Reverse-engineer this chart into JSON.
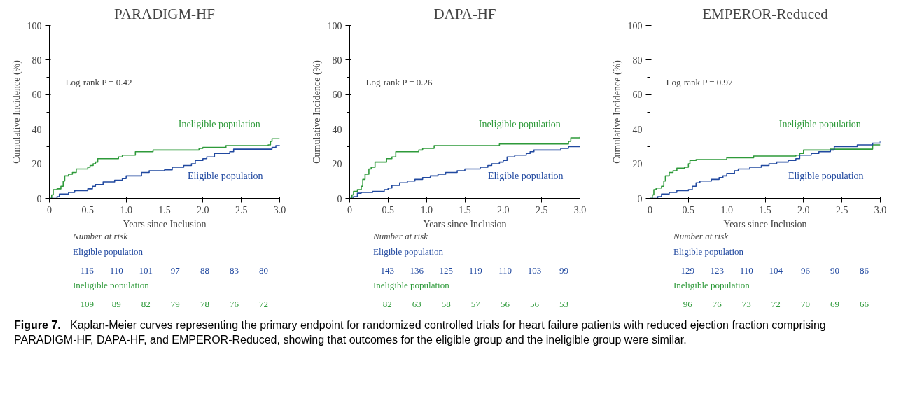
{
  "chart_data": [
    {
      "type": "step",
      "title": "PARADIGM-HF",
      "xlabel": "Years since Inclusion",
      "ylabel": "Cumulative Incidence (%)",
      "xlim": [
        0,
        3
      ],
      "ylim": [
        0,
        100
      ],
      "xticks": [
        0,
        0.5,
        {
          "value": 1,
          "label": "1.0"
        },
        1.5,
        {
          "value": 2,
          "label": "2.0"
        },
        2.5,
        {
          "value": 3,
          "label": "3.0"
        }
      ],
      "yticks": [
        0,
        20,
        40,
        60,
        80,
        100
      ],
      "grid": false,
      "series": [
        {
          "name": "Ineligible population",
          "color": "#2e9a3a",
          "x": [
            0,
            0.03,
            0.05,
            0.1,
            0.15,
            0.18,
            0.2,
            0.25,
            0.3,
            0.35,
            0.5,
            0.53,
            0.57,
            0.6,
            0.63,
            0.9,
            0.95,
            1.12,
            1.35,
            1.95,
            2.0,
            2.3,
            2.85,
            2.88,
            2.9,
            3.0
          ],
          "values": [
            0,
            2,
            5,
            5.5,
            7,
            10,
            13,
            14,
            15,
            17,
            18,
            19,
            20,
            21,
            23,
            24,
            25,
            27,
            28,
            29,
            29.5,
            30.5,
            31,
            33,
            34.5,
            34.5
          ]
        },
        {
          "name": "Eligible population",
          "color": "#2149a0",
          "x": [
            0,
            0.08,
            0.1,
            0.13,
            0.25,
            0.33,
            0.5,
            0.56,
            0.6,
            0.7,
            0.85,
            0.95,
            1.0,
            1.2,
            1.3,
            1.5,
            1.6,
            1.75,
            1.85,
            1.9,
            2.0,
            2.05,
            2.15,
            2.35,
            2.4,
            2.9,
            2.95,
            3.0
          ],
          "values": [
            0,
            0,
            1,
            2.5,
            3.5,
            4.5,
            5.5,
            7,
            8,
            9.5,
            10.5,
            11.5,
            13,
            15,
            16,
            16.5,
            18,
            19,
            20,
            22,
            23,
            24,
            26,
            27,
            28.5,
            29.5,
            30.5,
            31
          ]
        }
      ],
      "annotations": [
        "Log-rank P = 0.42",
        "Number at risk",
        "Eligible population",
        "116",
        "110",
        "101",
        "97",
        "88",
        "83",
        "80",
        "Ineligible population",
        "109",
        "89",
        "82",
        "79",
        "78",
        "76",
        "72",
        "Figure 7.",
        "Kaplan-Meier curves representing the primary endpoint for randomized controlled trials for heart failure patients with reduced ejection fraction comprising PARADIGM-HF, DAPA-HF, and EMPEROR-Reduced, showing that outcomes for the eligible group and the ineligible group were similar."
      ]
    },
    {
      "type": "step",
      "title": "DAPA-HF",
      "xlabel": "Years since Inclusion",
      "ylabel": "Cumulative Incidence (%)",
      "xlim": [
        0,
        3
      ],
      "ylim": [
        0,
        100
      ],
      "xticks": [
        0,
        0.5,
        {
          "value": 1,
          "label": "1.0"
        },
        1.5,
        {
          "value": 2,
          "label": "2.0"
        },
        2.5,
        {
          "value": 3,
          "label": "3.0"
        }
      ],
      "yticks": [
        0,
        20,
        40,
        60,
        80,
        100
      ],
      "grid": false,
      "series": [
        {
          "name": "Ineligible population",
          "color": "#2e9a3a",
          "x": [
            0,
            0.03,
            0.05,
            0.1,
            0.15,
            0.17,
            0.2,
            0.25,
            0.28,
            0.33,
            0.45,
            0.48,
            0.55,
            0.6,
            0.9,
            0.95,
            1.1,
            1.95,
            2.85,
            2.88,
            3.0
          ],
          "values": [
            0,
            2,
            4,
            5,
            7,
            11,
            14,
            17,
            18,
            21,
            21,
            23,
            24,
            27,
            28,
            29,
            30.5,
            31.5,
            33,
            35,
            35.5
          ]
        },
        {
          "name": "Eligible population",
          "color": "#2149a0",
          "x": [
            0,
            0.05,
            0.1,
            0.15,
            0.3,
            0.45,
            0.5,
            0.55,
            0.65,
            0.75,
            0.85,
            0.95,
            1.05,
            1.15,
            1.25,
            1.4,
            1.5,
            1.7,
            1.8,
            1.85,
            1.95,
            2.0,
            2.05,
            2.15,
            2.3,
            2.35,
            2.4,
            2.75,
            2.85,
            3.0
          ],
          "values": [
            0,
            1,
            3,
            3.5,
            4,
            5,
            6,
            7.5,
            9,
            10,
            11,
            12,
            13,
            14,
            15,
            16,
            17,
            18,
            19,
            20,
            21,
            22,
            24,
            25,
            26,
            27,
            28,
            29,
            30,
            30.5
          ]
        }
      ],
      "annotations": [
        "Log-rank P = 0.26",
        "Number at risk",
        "Eligible population",
        "143",
        "136",
        "125",
        "119",
        "110",
        "103",
        "99",
        "Ineligible population",
        "82",
        "63",
        "58",
        "57",
        "56",
        "56",
        "53"
      ]
    },
    {
      "type": "step",
      "title": "EMPEROR-Reduced",
      "xlabel": "Years since Inclusion",
      "ylabel": "Cumulative Incidence (%)",
      "xlim": [
        0,
        3
      ],
      "ylim": [
        0,
        100
      ],
      "xticks": [
        0,
        0.5,
        {
          "value": 1,
          "label": "1.0"
        },
        1.5,
        {
          "value": 2,
          "label": "2.0"
        },
        2.5,
        {
          "value": 3,
          "label": "3.0"
        }
      ],
      "yticks": [
        0,
        20,
        40,
        60,
        80,
        100
      ],
      "grid": false,
      "series": [
        {
          "name": "Ineligible population",
          "color": "#2e9a3a",
          "x": [
            0,
            0.03,
            0.05,
            0.08,
            0.15,
            0.18,
            0.2,
            0.25,
            0.3,
            0.35,
            0.45,
            0.5,
            0.52,
            0.6,
            1.0,
            1.35,
            1.9,
            1.95,
            2.0,
            2.35,
            2.85,
            2.9,
            3.0
          ],
          "values": [
            0,
            2,
            5,
            6,
            7,
            10,
            13,
            15,
            16,
            17.5,
            18,
            20,
            22,
            22.5,
            23.5,
            24.5,
            25,
            26,
            28,
            28.5,
            28.5,
            31,
            31
          ]
        },
        {
          "name": "Eligible population",
          "color": "#2149a0",
          "x": [
            0,
            0.08,
            0.1,
            0.15,
            0.25,
            0.35,
            0.5,
            0.55,
            0.6,
            0.65,
            0.8,
            0.9,
            0.95,
            1.0,
            1.1,
            1.15,
            1.3,
            1.45,
            1.55,
            1.65,
            1.8,
            1.9,
            1.95,
            2.1,
            2.2,
            2.35,
            2.4,
            2.7,
            2.9,
            3.0
          ],
          "values": [
            0,
            0,
            1,
            2.5,
            3.5,
            4.5,
            5,
            7,
            9,
            10,
            11,
            12,
            13,
            14.5,
            16,
            17,
            18,
            19,
            20,
            21,
            22,
            23,
            25,
            26,
            27,
            28,
            30,
            31,
            32,
            33
          ]
        }
      ],
      "annotations": [
        "Log-rank P = 0.97",
        "Number at risk",
        "Eligible population",
        "129",
        "123",
        "110",
        "104",
        "96",
        "90",
        "86",
        "Ineligible population",
        "96",
        "76",
        "73",
        "72",
        "70",
        "69",
        "66"
      ]
    }
  ]
}
